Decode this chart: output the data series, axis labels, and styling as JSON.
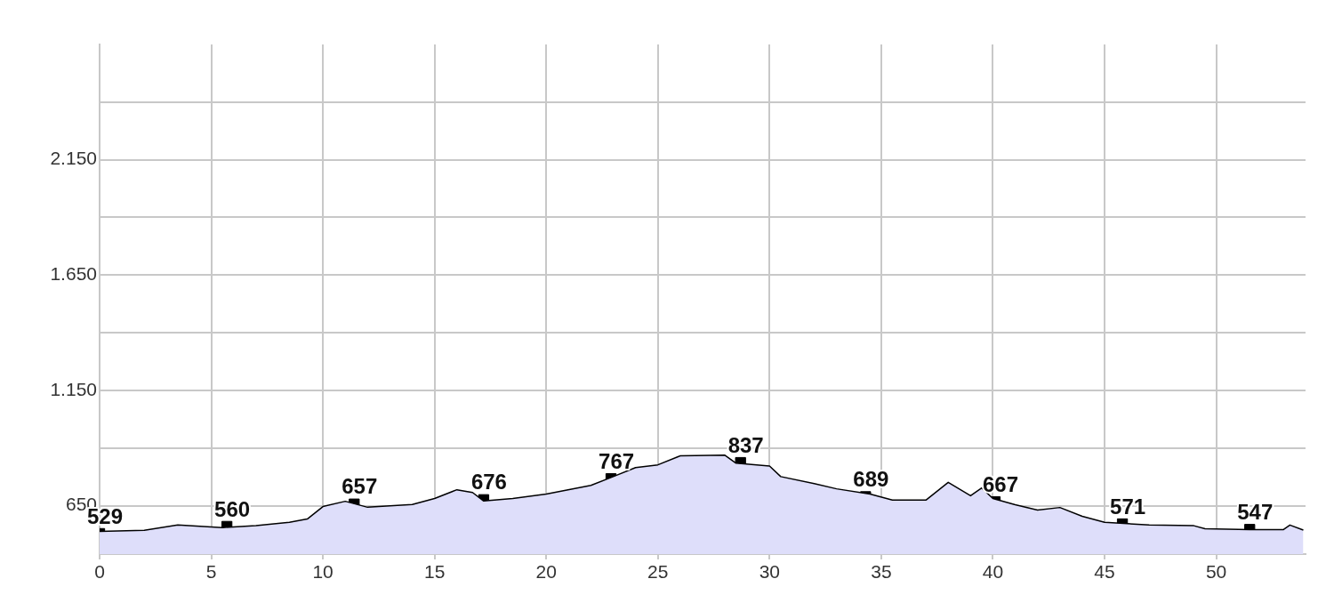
{
  "chart_data": {
    "type": "area",
    "series": [
      {
        "color": "#dedefa",
        "x": [
          0,
          2,
          3.5,
          5.5,
          7,
          8.5,
          9.3,
          10,
          11,
          12,
          14,
          15,
          16,
          16.7,
          17.2,
          18.5,
          20,
          22,
          23,
          24,
          25,
          26,
          28,
          28.5,
          30,
          30.5,
          32,
          33,
          34.5,
          35.5,
          37,
          38,
          39,
          39.5,
          40,
          41,
          42,
          43,
          44,
          45,
          47,
          49,
          49.5,
          51.5,
          53,
          53.3,
          53.9
        ],
        "values": [
          538,
          543,
          566,
          555,
          563,
          578,
          592,
          646,
          669,
          643,
          655,
          681,
          719,
          707,
          670,
          681,
          700,
          738,
          776,
          815,
          827,
          866,
          869,
          834,
          822,
          776,
          746,
          723,
          700,
          674,
          674,
          751,
          693,
          727,
          681,
          654,
          631,
          642,
          604,
          578,
          566,
          563,
          550,
          546,
          546,
          566,
          544
        ]
      },
      {
        "type": "scatter",
        "color": "#000000",
        "marker": "square",
        "x": [
          0,
          5.7,
          11.4,
          17.2,
          22.9,
          28.7,
          34.3,
          40.1,
          45.8,
          51.5
        ],
        "values": [
          529,
          560,
          657,
          676,
          767,
          837,
          689,
          667,
          571,
          547
        ],
        "value_labels": [
          "529",
          "560",
          "657",
          "676",
          "767",
          "837",
          "689",
          "667",
          "571",
          "547"
        ]
      }
    ],
    "xlim": [
      0,
      54
    ],
    "xticks": [
      0,
      5,
      10,
      15,
      20,
      25,
      30,
      35,
      40,
      45,
      50
    ],
    "ylim": [
      440,
      2650
    ],
    "yticks": [
      {
        "value": 650,
        "label": "650"
      },
      {
        "value": 900,
        "label": null
      },
      {
        "value": 1150,
        "label": "1.150"
      },
      {
        "value": 1400,
        "label": null
      },
      {
        "value": 1650,
        "label": "1.650"
      },
      {
        "value": 1900,
        "label": null
      },
      {
        "value": 2150,
        "label": "2.150"
      },
      {
        "value": 2400,
        "label": null
      }
    ],
    "grid": true,
    "legend": false
  }
}
